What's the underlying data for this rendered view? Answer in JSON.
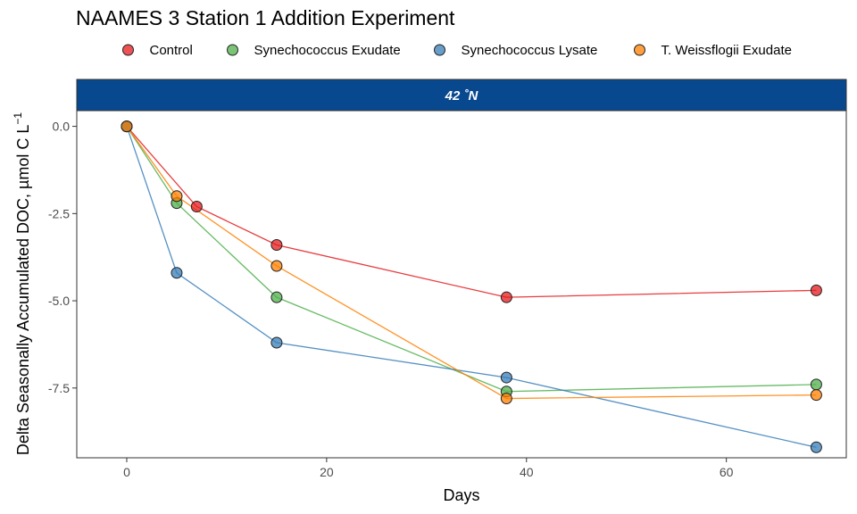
{
  "chart_data": {
    "type": "line",
    "title": "NAAMES 3 Station 1 Addition Experiment",
    "xlabel": "Days",
    "ylabel": "Delta Seasonally Accumulated DOC, µmol C L",
    "ylabel_superscript": "−1",
    "facet_label": "42 ˚N",
    "xlim": [
      -5,
      72
    ],
    "ylim": [
      -9.5,
      0.45
    ],
    "x_ticks": [
      0,
      20,
      40,
      60
    ],
    "y_ticks": [
      0.0,
      -2.5,
      -5.0,
      -7.5
    ],
    "x_tick_labels": [
      "0",
      "20",
      "40",
      "60"
    ],
    "y_tick_labels": [
      "0.0",
      "-2.5",
      "-5.0",
      "-7.5"
    ],
    "legend_position": "top",
    "grid": false,
    "strip_color": "#08488e",
    "series": [
      {
        "name": "Control",
        "color": "#e41a1c",
        "x": [
          0,
          7,
          15,
          38,
          69
        ],
        "y": [
          0.0,
          -2.3,
          -3.4,
          -4.9,
          -4.7
        ]
      },
      {
        "name": "Synechococcus Exudate",
        "color": "#4daf4a",
        "x": [
          0,
          5,
          15,
          38,
          69
        ],
        "y": [
          0.0,
          -2.2,
          -4.9,
          -7.6,
          -7.4
        ]
      },
      {
        "name": "Synechococcus Lysate",
        "color": "#377eb8",
        "x": [
          0,
          5,
          15,
          38,
          69
        ],
        "y": [
          0.0,
          -4.2,
          -6.2,
          -7.2,
          -9.2
        ]
      },
      {
        "name": "T. Weissflogii Exudate",
        "color": "#ff7f00",
        "x": [
          0,
          5,
          15,
          38,
          69
        ],
        "y": [
          0.0,
          -2.0,
          -4.0,
          -7.8,
          -7.7
        ]
      }
    ]
  }
}
